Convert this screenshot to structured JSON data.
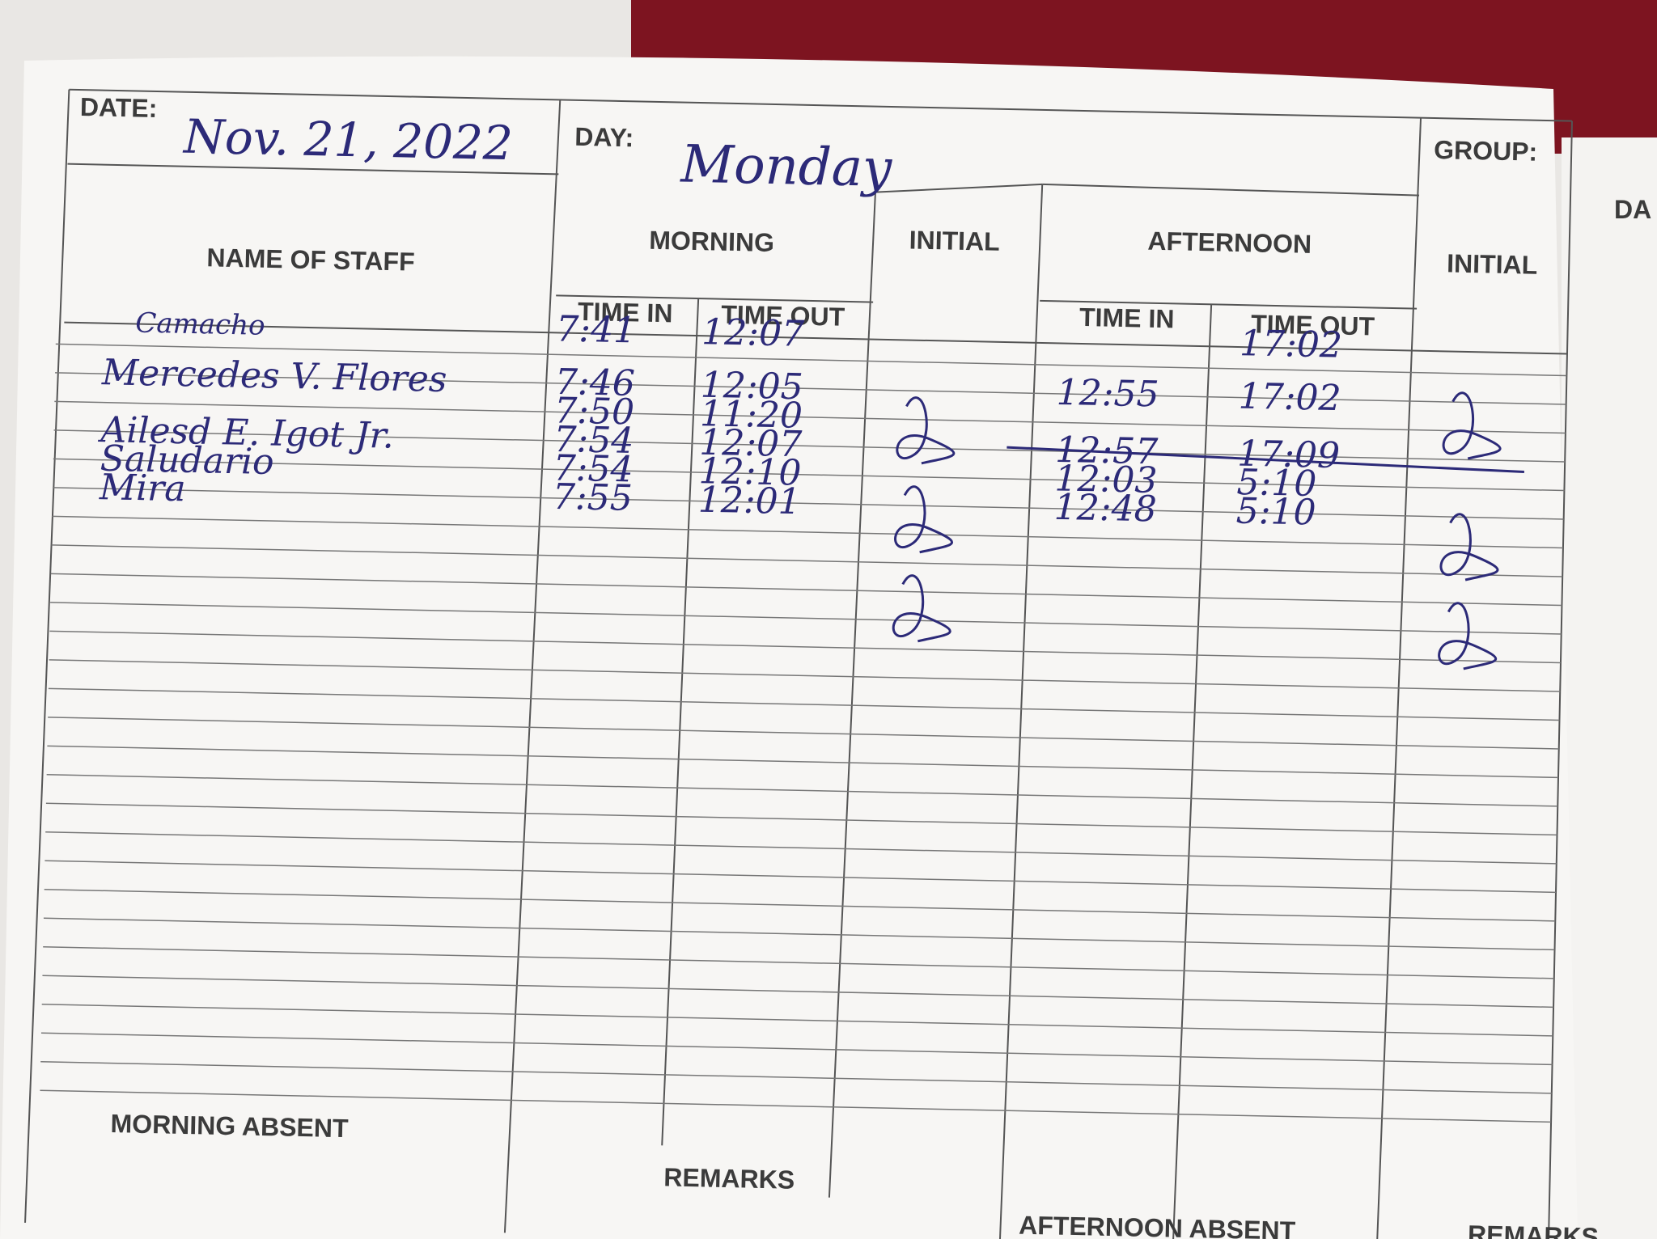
{
  "header": {
    "date_label": "DATE:",
    "date": "Nov. 21, 2022",
    "day_label": "DAY:",
    "day": "Monday",
    "group_label": "GROUP:"
  },
  "columns": {
    "name": "NAME OF STAFF",
    "morning": "MORNING",
    "morning_initial": "INITIAL",
    "afternoon": "AFTERNOON",
    "afternoon_initial": "INITIAL",
    "morning_in": "TIME IN",
    "morning_out": "TIME OUT",
    "afternoon_in": "TIME IN",
    "afternoon_out": "TIME OUT"
  },
  "rows": [
    {
      "name": "Camacho",
      "morning_in": "7:41",
      "morning_out": "12:07",
      "afternoon_out": "17:02"
    },
    {
      "name": "Mercedes V. Flores",
      "morning_in": "7:46",
      "morning_out": "12:05",
      "afternoon_in": "12:55",
      "afternoon_out": "17:02"
    },
    {
      "morning_in": "7:50",
      "morning_out": "11:20"
    },
    {
      "name": "Ailesd E. Igot Jr.",
      "morning_in": "7:54",
      "morning_out": "12:07",
      "afternoon_in": "12:57",
      "afternoon_out": "17:09"
    },
    {
      "name": "Saludario",
      "morning_in": "7:54",
      "morning_out": "12:10",
      "afternoon_in": "12:03",
      "afternoon_out": "5:10"
    },
    {
      "name": "Mira",
      "morning_in": "7:55",
      "morning_out": "12:01",
      "afternoon_in": "12:48",
      "afternoon_out": "5:10"
    }
  ],
  "footer": {
    "morning_absent": "MORNING ABSENT",
    "remarks": "REMARKS",
    "afternoon_absent": "AFTERNOON ABSENT",
    "next_remarks": "REMARKS"
  },
  "next_page": {
    "date_label": "DA"
  }
}
